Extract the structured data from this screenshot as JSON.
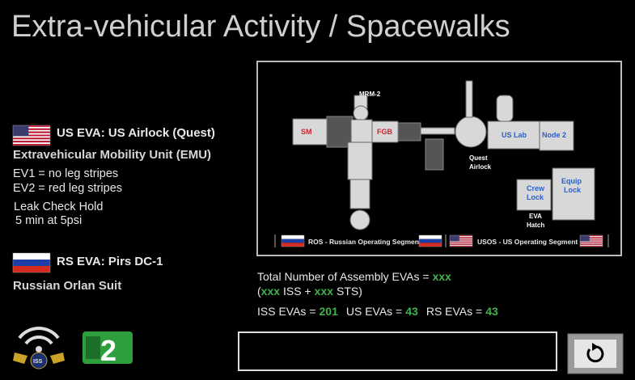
{
  "header": {
    "title": "Extra-vehicular Activity / Spacewalks"
  },
  "us_eva": {
    "heading": "US EVA: US Airlock (Quest)",
    "suit": "Extravehicular Mobility Unit (EMU)",
    "lines": [
      "EV1 = no leg stripes",
      "EV2 = red leg stripes",
      "Leak Check Hold",
      "5 min at 5psi"
    ]
  },
  "rs_eva": {
    "heading": "RS EVA: Pirs DC-1",
    "suit": "Russian Orlan Suit"
  },
  "diagram": {
    "labels": {
      "sm": "SM",
      "mrm2": "MRM-2",
      "fgb": "FGB",
      "quest": "Quest",
      "airlock": "Airlock",
      "us_lab": "US Lab",
      "node2": "Node 2",
      "crew": "Crew",
      "crew2": "Lock",
      "equip": "Equip",
      "equip2": "Lock",
      "eva": "EVA",
      "hatch": "Hatch"
    },
    "segments": [
      "ROS - Russian Operating Segment",
      "USOS - US Operating Segment"
    ]
  },
  "stats": {
    "total_label": "Total Number of Assembly EVAs =",
    "total_value": "xxx",
    "open": "(",
    "iss_sub_value": "xxx",
    "iss_sub_label": "ISS +",
    "sts_value": "xxx",
    "sts_label": "STS)",
    "iss_label": "ISS EVAs =",
    "iss_value": 201,
    "us_label": "US EVAs =",
    "us_value": 43,
    "rs_label": "RS EVAs =",
    "rs_value": 43
  },
  "logos": {
    "iss": "ISS",
    "badge": "2"
  }
}
